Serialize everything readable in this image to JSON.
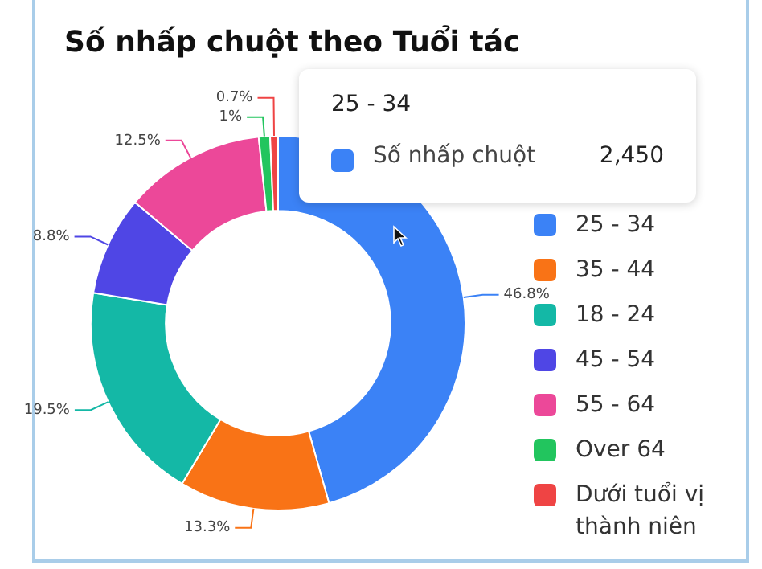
{
  "chart_data": {
    "type": "donut",
    "title": "Số nhấp chuột theo Tuổi tác",
    "categories": [
      "25 - 34",
      "35 - 44",
      "18 - 24",
      "45 - 54",
      "55 - 64",
      "Over 64",
      "Dưới tuổi vị thành niên"
    ],
    "values": [
      46.8,
      13.3,
      19.5,
      8.8,
      12.5,
      1,
      0.7
    ],
    "colors": [
      "#3b82f6",
      "#f97316",
      "#14b8a6",
      "#4f46e5",
      "#ec4899",
      "#22c55e",
      "#ef4444"
    ],
    "value_labels": [
      "46.8%",
      "13.3%",
      "19.5%",
      "8.8%",
      "12.5%",
      "1%",
      "0.7%"
    ],
    "legend": "right",
    "annotations": [
      "25 - 34",
      "Số nhấp chuột",
      "2,450"
    ]
  }
}
